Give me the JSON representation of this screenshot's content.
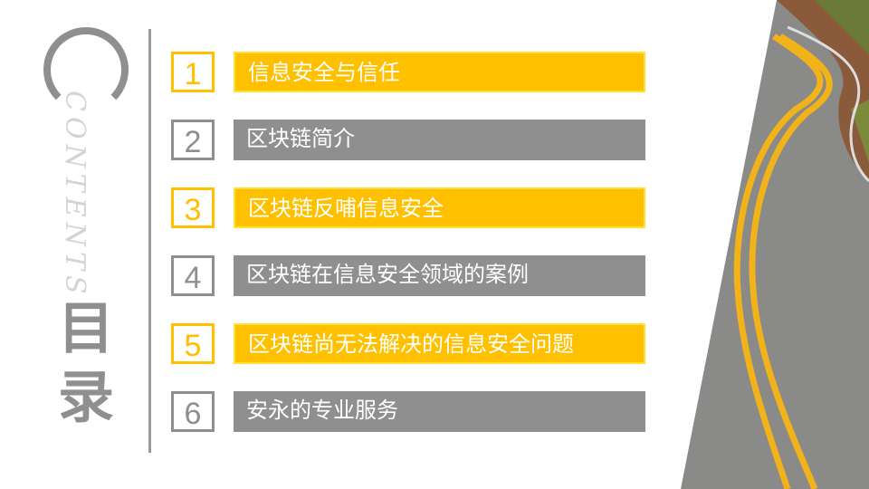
{
  "heading": {
    "label_en": "CONTENTS",
    "title_line1": "目",
    "title_line2": "录"
  },
  "colors": {
    "accent": "#ffc000",
    "neutral": "#8f8f8f"
  },
  "items": [
    {
      "number": "1",
      "label": "信息安全与信任",
      "style": "accent"
    },
    {
      "number": "2",
      "label": "区块链简介",
      "style": "neutral"
    },
    {
      "number": "3",
      "label": "区块链反哺信息安全",
      "style": "accent"
    },
    {
      "number": "4",
      "label": "区块链在信息安全领域的案例",
      "style": "neutral"
    },
    {
      "number": "5",
      "label": "区块链尚无法解决的信息安全问题",
      "style": "accent"
    },
    {
      "number": "6",
      "label": "安永的专业服务",
      "style": "neutral"
    }
  ],
  "image": {
    "subject": "winding road with yellow center lines"
  }
}
